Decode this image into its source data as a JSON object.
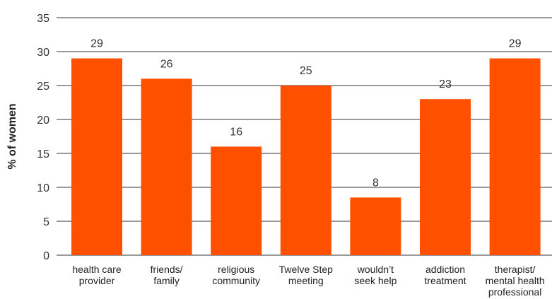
{
  "chart_data": {
    "type": "bar",
    "categories": [
      [
        "health care",
        "provider"
      ],
      [
        "friends/",
        "family"
      ],
      [
        "religious",
        "community"
      ],
      [
        "Twelve Step",
        "meeting"
      ],
      [
        "wouldn’t",
        "seek help"
      ],
      [
        "addiction",
        "treatment"
      ],
      [
        "therapist/",
        "mental health",
        "professional"
      ]
    ],
    "values": [
      29,
      26,
      16,
      25,
      8.5,
      23,
      29
    ],
    "data_labels": [
      "29",
      "26",
      "16",
      "25",
      "8",
      "23",
      "29"
    ],
    "ylabel": "% of women",
    "ylim": [
      0,
      35
    ],
    "yticks": [
      0,
      5,
      10,
      15,
      20,
      25,
      30,
      35
    ],
    "grid": true,
    "bar_color": "#FF5000",
    "grid_color": "#333333"
  }
}
